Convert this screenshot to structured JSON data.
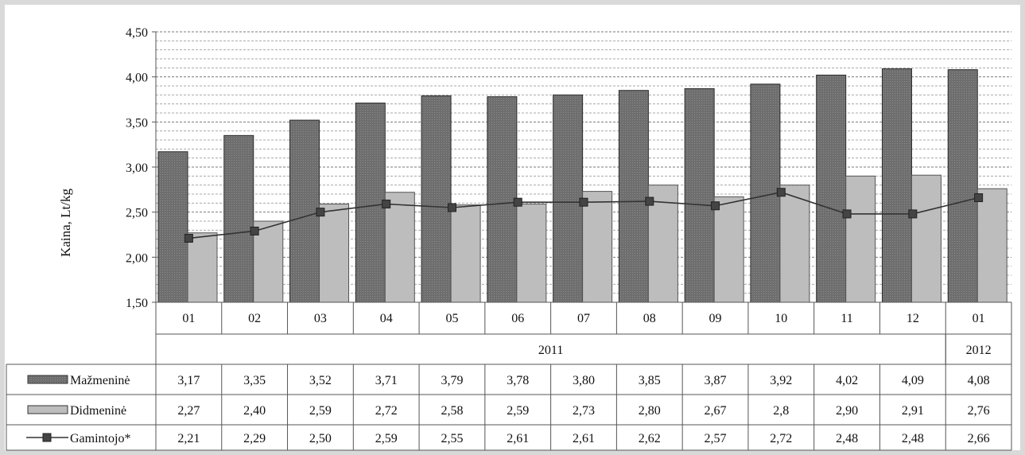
{
  "chart_data": {
    "type": "bar",
    "ylabel": "Kaina, Lt/kg",
    "ylim": [
      1.5,
      4.5
    ],
    "yticks": [
      "1,50",
      "2,00",
      "2,50",
      "3,00",
      "3,50",
      "4,00",
      "4,50"
    ],
    "ytick_values": [
      1.5,
      2.0,
      2.5,
      3.0,
      3.5,
      4.0,
      4.5
    ],
    "grid": "horizontal dashed",
    "categories": [
      "01",
      "02",
      "03",
      "04",
      "05",
      "06",
      "07",
      "08",
      "09",
      "10",
      "11",
      "12",
      "01"
    ],
    "year_groups": [
      {
        "label": "2011",
        "from": 0,
        "to": 11
      },
      {
        "label": "2012",
        "from": 12,
        "to": 12
      }
    ],
    "series": [
      {
        "name": "Mažmeninė",
        "kind": "bar",
        "color": "#6e6e6e",
        "values": [
          3.17,
          3.35,
          3.52,
          3.71,
          3.79,
          3.78,
          3.8,
          3.85,
          3.87,
          3.92,
          4.02,
          4.09,
          4.08
        ],
        "labels": [
          "3,17",
          "3,35",
          "3,52",
          "3,71",
          "3,79",
          "3,78",
          "3,80",
          "3,85",
          "3,87",
          "3,92",
          "4,02",
          "4,09",
          "4,08"
        ]
      },
      {
        "name": "Didmeninė",
        "kind": "bar",
        "color": "#bdbdbd",
        "values": [
          2.27,
          2.4,
          2.59,
          2.72,
          2.58,
          2.59,
          2.73,
          2.8,
          2.67,
          2.8,
          2.9,
          2.91,
          2.76
        ],
        "labels": [
          "2,27",
          "2,40",
          "2,59",
          "2,72",
          "2,58",
          "2,59",
          "2,73",
          "2,80",
          "2,67",
          "2,8",
          "2,90",
          "2,91",
          "2,76"
        ]
      },
      {
        "name": "Gamintojo*",
        "kind": "line",
        "color": "#333333",
        "values": [
          2.21,
          2.29,
          2.5,
          2.59,
          2.55,
          2.61,
          2.61,
          2.62,
          2.57,
          2.72,
          2.48,
          2.48,
          2.66
        ],
        "labels": [
          "2,21",
          "2,29",
          "2,50",
          "2,59",
          "2,55",
          "2,61",
          "2,61",
          "2,62",
          "2,57",
          "2,72",
          "2,48",
          "2,48",
          "2,66"
        ]
      }
    ]
  }
}
